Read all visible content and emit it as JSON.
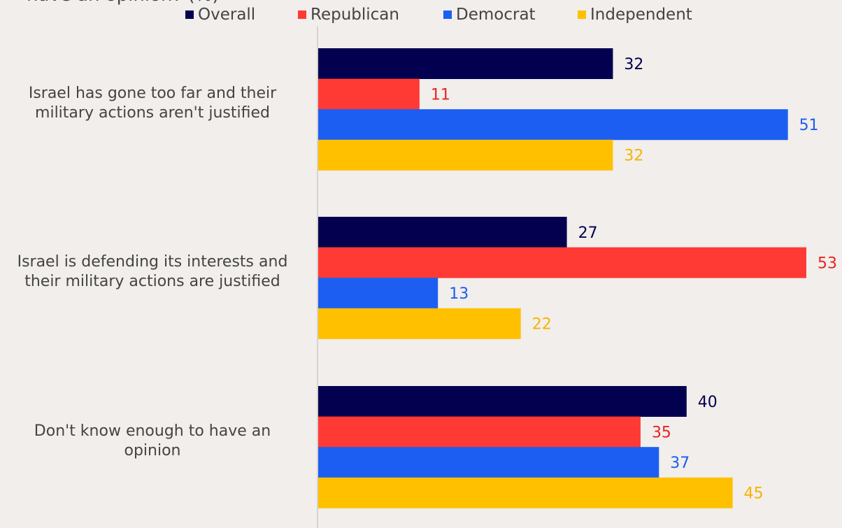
{
  "chart_data": {
    "type": "bar",
    "orientation": "horizontal",
    "title_fragment": "have an opinion? (%)",
    "categories": [
      "Israel has gone too far and their military actions aren't justified",
      "Israel is defending its interests and their military actions are justified",
      "Don't know enough to have an opinion"
    ],
    "category_lines": [
      [
        "Israel has gone too far and their",
        "military actions aren't justified"
      ],
      [
        "Israel is defending its interests and",
        "their military actions are justified"
      ],
      [
        "Don't know enough to have an",
        "opinion"
      ]
    ],
    "series": [
      {
        "name": "Overall",
        "color": "#02004f",
        "label_color": "#02004f",
        "values": [
          32,
          27,
          40
        ]
      },
      {
        "name": "Republican",
        "color": "#ff3a35",
        "label_color": "#e52422",
        "values": [
          11,
          53,
          35
        ]
      },
      {
        "name": "Democrat",
        "color": "#1c5ef2",
        "label_color": "#1c5ef2",
        "values": [
          51,
          13,
          37
        ]
      },
      {
        "name": "Independent",
        "color": "#ffc000",
        "label_color": "#f5b400",
        "values": [
          32,
          22,
          45
        ]
      }
    ],
    "xlim": [
      0,
      53
    ],
    "legend_position": "top",
    "grid": false
  }
}
